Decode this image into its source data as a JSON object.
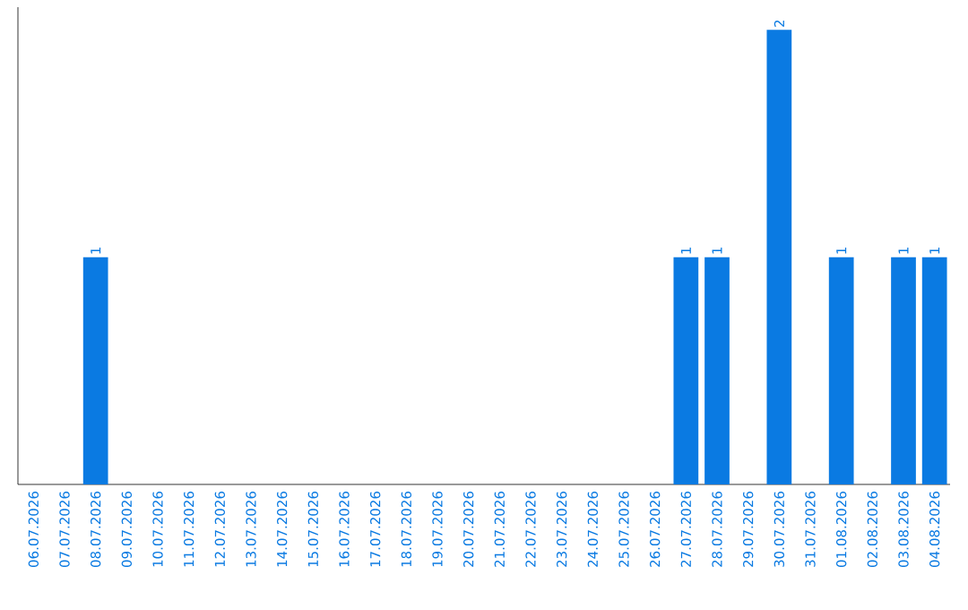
{
  "chart_data": {
    "type": "bar",
    "categories": [
      "06.07.2026",
      "07.07.2026",
      "08.07.2026",
      "09.07.2026",
      "10.07.2026",
      "11.07.2026",
      "12.07.2026",
      "13.07.2026",
      "14.07.2026",
      "15.07.2026",
      "16.07.2026",
      "17.07.2026",
      "18.07.2026",
      "19.07.2026",
      "20.07.2026",
      "21.07.2026",
      "22.07.2026",
      "23.07.2026",
      "24.07.2026",
      "25.07.2026",
      "26.07.2026",
      "27.07.2026",
      "28.07.2026",
      "29.07.2026",
      "30.07.2026",
      "31.07.2026",
      "01.08.2026",
      "02.08.2026",
      "03.08.2026",
      "04.08.2026"
    ],
    "values": [
      0,
      0,
      1,
      0,
      0,
      0,
      0,
      0,
      0,
      0,
      0,
      0,
      0,
      0,
      0,
      0,
      0,
      0,
      0,
      0,
      0,
      1,
      1,
      0,
      2,
      0,
      1,
      0,
      1,
      1
    ],
    "value_labels": [
      null,
      null,
      "1",
      null,
      null,
      null,
      null,
      null,
      null,
      null,
      null,
      null,
      null,
      null,
      null,
      null,
      null,
      null,
      null,
      null,
      null,
      "1",
      "1",
      null,
      "2",
      null,
      "1",
      null,
      "1",
      "1"
    ],
    "color": "#0a7ae2",
    "ylim": [
      0,
      2.1
    ],
    "tick_labels": "x"
  }
}
